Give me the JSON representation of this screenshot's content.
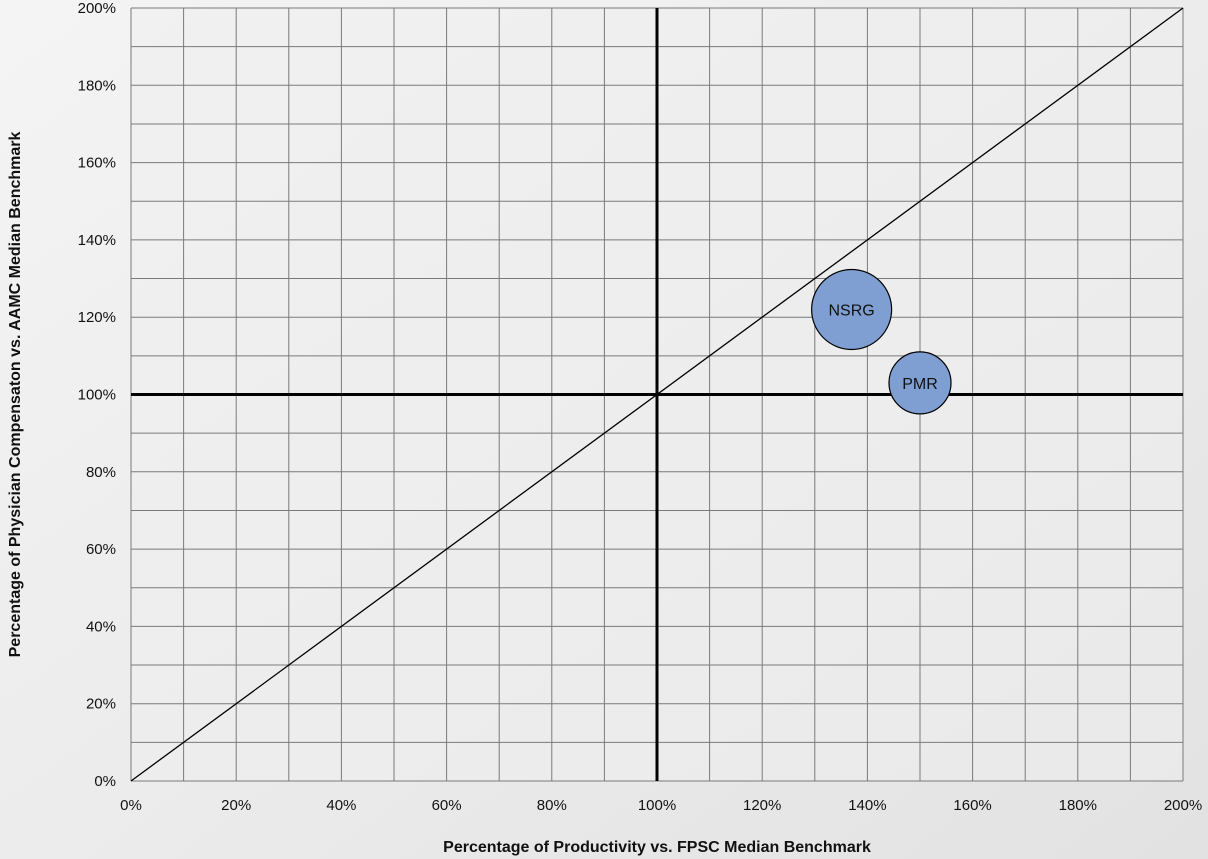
{
  "chart_data": {
    "type": "scatter",
    "xlabel": "Percentage of Productivity vs. FPSC Median Benchmark",
    "ylabel": "Percentage of Physician Compensaton vs. AAMC Median Benchmark",
    "xlim": [
      0,
      200
    ],
    "ylim": [
      0,
      200
    ],
    "x_ticks": [
      "0%",
      "20%",
      "40%",
      "60%",
      "80%",
      "100%",
      "120%",
      "140%",
      "160%",
      "180%",
      "200%"
    ],
    "y_ticks": [
      "0%",
      "20%",
      "40%",
      "60%",
      "80%",
      "100%",
      "120%",
      "140%",
      "160%",
      "180%",
      "200%"
    ],
    "grid": true,
    "minor_grid_step": 10,
    "reference_lines": {
      "x": 100,
      "y": 100,
      "diagonal": "y = x"
    },
    "points": [
      {
        "label": "NSRG",
        "x": 137,
        "y": 122,
        "size": "large"
      },
      {
        "label": "PMR",
        "x": 150,
        "y": 103,
        "size": "small"
      }
    ],
    "colors": {
      "bubble_fill": "#7f9fd2",
      "bubble_stroke": "#000000",
      "grid": "#7a7a7a",
      "reference": "#000000",
      "plot_bg": "#efefef"
    }
  }
}
